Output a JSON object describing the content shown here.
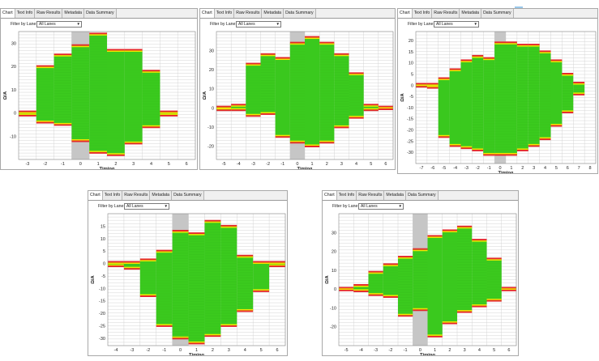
{
  "tabs": [
    "Chart",
    "Text Info",
    "Raw Results",
    "Metadata",
    "Data Summary"
  ],
  "filter": {
    "label": "Filter by Lane:",
    "value": "All Lanes"
  },
  "colors": {
    "bar": "#3ccd1f",
    "edge_outer": "#e52a2a",
    "edge_inner": "#f2e600",
    "highlight": "#c6c6c6",
    "grid": "#d4d4d4"
  },
  "chart_data": [
    {
      "type": "bar",
      "xlabel": "Timing",
      "ylabel": "Ω/A",
      "xlim": [
        -3.5,
        6.5
      ],
      "ylim": [
        -20,
        35
      ],
      "xticks": [
        -3,
        -2,
        -1,
        0,
        1,
        2,
        3,
        4,
        5,
        6
      ],
      "yticks": [
        30,
        20,
        10,
        0,
        -10
      ],
      "highlight_x": 0,
      "bars": [
        {
          "x": -3,
          "top": 0.5,
          "bottom": -1
        },
        {
          "x": -2,
          "top": 20,
          "bottom": -4
        },
        {
          "x": -1,
          "top": 25,
          "bottom": -5
        },
        {
          "x": 0,
          "top": 29,
          "bottom": -12
        },
        {
          "x": 1,
          "top": 34,
          "bottom": -17
        },
        {
          "x": 2,
          "top": 27,
          "bottom": -18
        },
        {
          "x": 3,
          "top": 27,
          "bottom": -13
        },
        {
          "x": 4,
          "top": 18,
          "bottom": -6
        },
        {
          "x": 5,
          "top": 0.5,
          "bottom": -1
        }
      ]
    },
    {
      "type": "bar",
      "xlabel": "Timing",
      "ylabel": "Ω/A",
      "xlim": [
        -5.5,
        6.5
      ],
      "ylim": [
        -27,
        40
      ],
      "xticks": [
        -5,
        -4,
        -3,
        -2,
        -1,
        0,
        1,
        2,
        3,
        4,
        5,
        6
      ],
      "yticks": [
        30,
        20,
        10,
        0,
        -10,
        -20
      ],
      "highlight_x": 0,
      "bars": [
        {
          "x": -5,
          "top": 0.5,
          "bottom": -1
        },
        {
          "x": -4,
          "top": 1.5,
          "bottom": -1
        },
        {
          "x": -3,
          "top": 23,
          "bottom": -4
        },
        {
          "x": -2,
          "top": 28,
          "bottom": -3
        },
        {
          "x": -1,
          "top": 26,
          "bottom": -15
        },
        {
          "x": 0,
          "top": 34,
          "bottom": -18
        },
        {
          "x": 1,
          "top": 37,
          "bottom": -20
        },
        {
          "x": 2,
          "top": 34,
          "bottom": -18
        },
        {
          "x": 3,
          "top": 28,
          "bottom": -10
        },
        {
          "x": 4,
          "top": 18,
          "bottom": -5
        },
        {
          "x": 5,
          "top": 1.5,
          "bottom": -1
        },
        {
          "x": 6,
          "top": 0.5,
          "bottom": -0.5
        }
      ]
    },
    {
      "type": "bar",
      "xlabel": "Timing",
      "ylabel": "Ω/A",
      "xlim": [
        -7.5,
        8.5
      ],
      "ylim": [
        -35,
        24
      ],
      "xticks": [
        -7,
        -6,
        -5,
        -4,
        -3,
        -2,
        -1,
        0,
        1,
        2,
        3,
        4,
        5,
        6,
        7,
        8
      ],
      "yticks": [
        20,
        15,
        10,
        5,
        0,
        -5,
        -10,
        -15,
        -20,
        -25,
        -30
      ],
      "highlight_x": 0,
      "bars": [
        {
          "x": -7,
          "top": 0.5,
          "bottom": -0.5
        },
        {
          "x": -6,
          "top": 0.5,
          "bottom": -1
        },
        {
          "x": -5,
          "top": 3,
          "bottom": -23
        },
        {
          "x": -4,
          "top": 7,
          "bottom": -27
        },
        {
          "x": -3,
          "top": 11,
          "bottom": -28
        },
        {
          "x": -2,
          "top": 13,
          "bottom": -29
        },
        {
          "x": -1,
          "top": 12,
          "bottom": -31
        },
        {
          "x": 0,
          "top": 19,
          "bottom": -31
        },
        {
          "x": 1,
          "top": 19,
          "bottom": -31
        },
        {
          "x": 2,
          "top": 18,
          "bottom": -29
        },
        {
          "x": 3,
          "top": 18,
          "bottom": -27
        },
        {
          "x": 4,
          "top": 15,
          "bottom": -24
        },
        {
          "x": 5,
          "top": 11,
          "bottom": -18
        },
        {
          "x": 6,
          "top": 5,
          "bottom": -12
        },
        {
          "x": 7,
          "top": 1,
          "bottom": -4
        }
      ]
    },
    {
      "type": "bar",
      "xlabel": "Timing",
      "ylabel": "Ω/A",
      "xlim": [
        -4.5,
        6.5
      ],
      "ylim": [
        -33,
        20
      ],
      "xticks": [
        -4,
        -3,
        -2,
        -1,
        0,
        1,
        2,
        3,
        4,
        5,
        6
      ],
      "yticks": [
        15,
        10,
        5,
        0,
        -5,
        -10,
        -15,
        -20,
        -25,
        -30
      ],
      "highlight_x": 0,
      "bars": [
        {
          "x": -4,
          "top": 0.5,
          "bottom": -1
        },
        {
          "x": -3,
          "top": 0.5,
          "bottom": -2
        },
        {
          "x": -2,
          "top": 1.5,
          "bottom": -13
        },
        {
          "x": -1,
          "top": 5,
          "bottom": -25
        },
        {
          "x": 0,
          "top": 13,
          "bottom": -30
        },
        {
          "x": 1,
          "top": 12,
          "bottom": -32
        },
        {
          "x": 2,
          "top": 17,
          "bottom": -29
        },
        {
          "x": 3,
          "top": 15,
          "bottom": -25
        },
        {
          "x": 4,
          "top": 3,
          "bottom": -19
        },
        {
          "x": 5,
          "top": 0.5,
          "bottom": -11
        },
        {
          "x": 6,
          "top": 0.5,
          "bottom": -1
        }
      ]
    },
    {
      "type": "bar",
      "xlabel": "Timing",
      "ylabel": "Ω/A",
      "xlim": [
        -5.5,
        6.5
      ],
      "ylim": [
        -30,
        40
      ],
      "xticks": [
        -5,
        -4,
        -3,
        -2,
        -1,
        0,
        1,
        2,
        3,
        4,
        5,
        6
      ],
      "yticks": [
        30,
        20,
        10,
        0,
        -10,
        -20
      ],
      "highlight_x": 0,
      "bars": [
        {
          "x": -5,
          "top": 0.5,
          "bottom": -0.5
        },
        {
          "x": -4,
          "top": 2,
          "bottom": -1
        },
        {
          "x": -3,
          "top": 9,
          "bottom": -3
        },
        {
          "x": -2,
          "top": 13,
          "bottom": -4
        },
        {
          "x": -1,
          "top": 17,
          "bottom": -14
        },
        {
          "x": 0,
          "top": 21,
          "bottom": -11
        },
        {
          "x": 1,
          "top": 28,
          "bottom": -25
        },
        {
          "x": 2,
          "top": 31,
          "bottom": -18
        },
        {
          "x": 3,
          "top": 33,
          "bottom": -12
        },
        {
          "x": 4,
          "top": 26,
          "bottom": -9
        },
        {
          "x": 5,
          "top": 16,
          "bottom": -6
        },
        {
          "x": 6,
          "top": 0.5,
          "bottom": -0.5
        }
      ]
    }
  ]
}
